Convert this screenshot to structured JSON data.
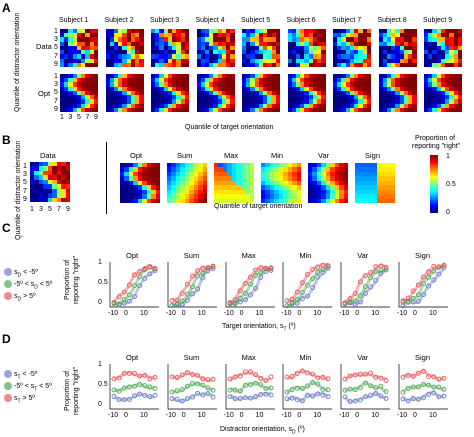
{
  "panels": {
    "A": {
      "letter": "A",
      "subjects": [
        "Subject 1",
        "Subject 2",
        "Subject 3",
        "Subject 4",
        "Subject 5",
        "Subject 6",
        "Subject 7",
        "Subject 8",
        "Subject 9"
      ],
      "row_labels": [
        "Data",
        "Opt"
      ],
      "y_label": "Quantile of distractor orientation",
      "y_ticks": [
        "1",
        "3",
        "5",
        "7",
        "9"
      ],
      "x_ticks": [
        "1",
        "3",
        "5",
        "7",
        "9"
      ],
      "x_label": "Quantile of target orientation"
    },
    "B": {
      "letter": "B",
      "data_title": "Data",
      "models": [
        "Opt",
        "Sum",
        "Max",
        "Min",
        "Var",
        "Sign"
      ],
      "y_label": "Quantile of distractor orientation",
      "y_ticks": [
        "1",
        "3",
        "5",
        "7",
        "9"
      ],
      "x_ticks": [
        "1",
        "3",
        "5",
        "7",
        "9"
      ],
      "x_label": "Quantile of target orientation",
      "colorbar_title_1": "Proportion of",
      "colorbar_title_2": "reporting \"right\"",
      "colorbar_ticks": [
        "1",
        "0.5",
        "0"
      ]
    },
    "C": {
      "letter": "C",
      "models": [
        "Opt",
        "Sum",
        "Max",
        "Min",
        "Var",
        "Sign"
      ],
      "y_label_1": "Proportion of",
      "y_label_2": "reporting \"right\"",
      "y_ticks": [
        "1",
        "0.5",
        "0"
      ],
      "x_ticks": [
        "-10",
        "0",
        "10"
      ],
      "x_label": "Target orientation, s",
      "x_label_sub": "T",
      "x_label_unit": " (º)",
      "legend": [
        {
          "label": "s",
          "sub": "D",
          "rest": " < -5º",
          "color": "#6b7fc4"
        },
        {
          "label": "-5º < s",
          "sub": "D",
          "rest": " < 5º",
          "color": "#4daa57"
        },
        {
          "label": "s",
          "sub": "D",
          "rest": " > 5º",
          "color": "#e8575a"
        }
      ]
    },
    "D": {
      "letter": "D",
      "models": [
        "Opt",
        "Sum",
        "Max",
        "Min",
        "Var",
        "Sign"
      ],
      "y_label_1": "Proportion of",
      "y_label_2": "reporting \"right\"",
      "y_ticks": [
        "1",
        "0.5",
        "0"
      ],
      "x_ticks": [
        "-10",
        "0",
        "10"
      ],
      "x_label": "Distractor orientation, s",
      "x_label_sub": "D",
      "x_label_unit": " (º)",
      "legend": [
        {
          "label": "s",
          "sub": "T",
          "rest": " < -5º",
          "color": "#6b7fc4"
        },
        {
          "label": "-5º < s",
          "sub": "T",
          "rest": " < 5º",
          "color": "#4daa57"
        },
        {
          "label": "s",
          "sub": "T",
          "rest": " > 5º",
          "color": "#e8575a"
        }
      ]
    }
  },
  "colors": {
    "red": "#e8575a",
    "green": "#4daa57",
    "blue": "#6b7fc4",
    "colormap": [
      "#00007f",
      "#0000ff",
      "#007fff",
      "#00ffff",
      "#7fff7f",
      "#ffff00",
      "#ff7f00",
      "#ff0000",
      "#7f0000"
    ]
  }
}
